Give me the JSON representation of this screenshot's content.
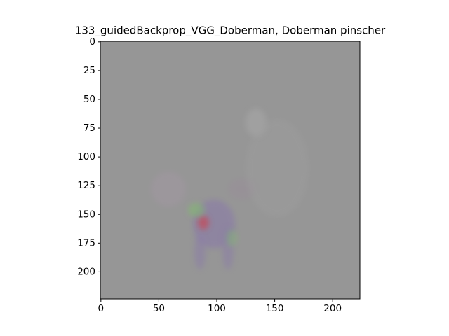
{
  "chart_data": {
    "type": "image",
    "title": "133_guidedBackprop_VGG_Doberman, Doberman pinscher",
    "xlim": [
      -0.5,
      223.5
    ],
    "ylim": [
      -0.5,
      223.5
    ],
    "y_inverted": true,
    "xticks": [
      0,
      50,
      100,
      150,
      200
    ],
    "yticks": [
      0,
      25,
      50,
      75,
      100,
      125,
      150,
      175,
      200
    ],
    "color": "#969696"
  }
}
